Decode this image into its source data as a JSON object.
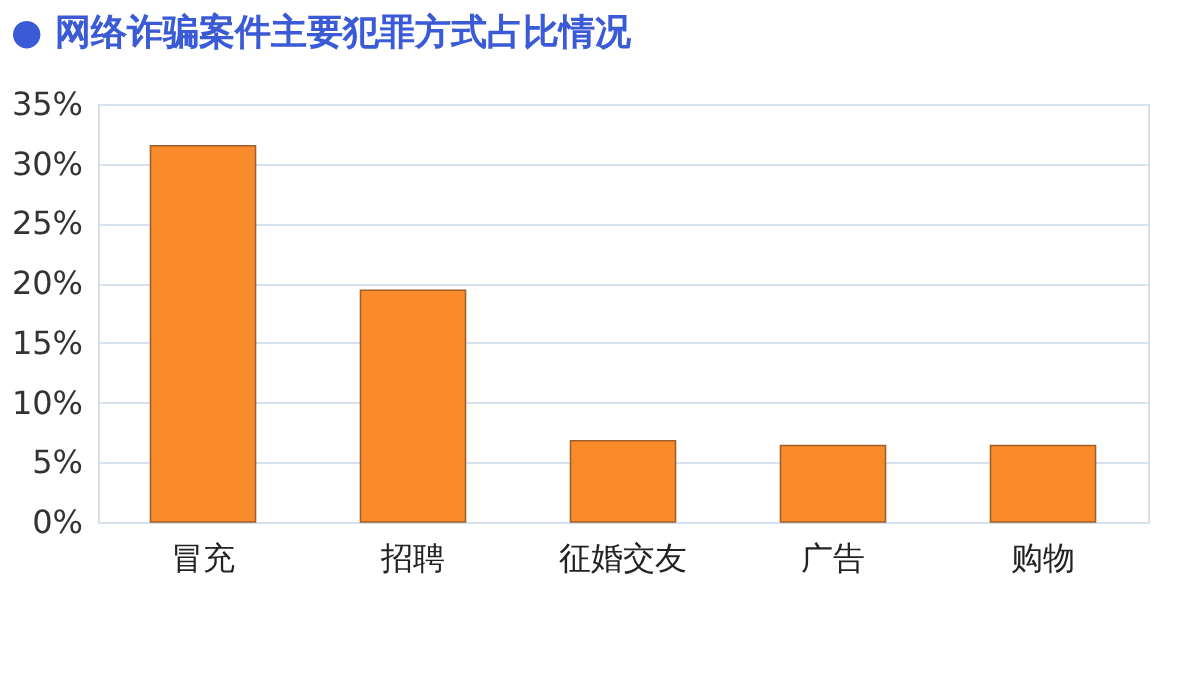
{
  "chart_data": {
    "type": "bar",
    "title": "● 网络诈骗案件主要犯罪方式占比情况",
    "categories": [
      "冒充",
      "招聘",
      "征婚交友",
      "广告",
      "购物"
    ],
    "values": [
      31.5,
      19.4,
      6.8,
      6.4,
      6.4
    ],
    "color": "#f98b2a",
    "ylim": [
      0,
      35
    ],
    "yticks": [
      {
        "value": 0,
        "label": "0%"
      },
      {
        "value": 5,
        "label": "5%"
      },
      {
        "value": 10,
        "label": "10%"
      },
      {
        "value": 15,
        "label": "15%"
      },
      {
        "value": 20,
        "label": "20%"
      },
      {
        "value": 25,
        "label": "25%"
      },
      {
        "value": 30,
        "label": "30%"
      },
      {
        "value": 35,
        "label": "35%"
      }
    ],
    "grid": "y"
  }
}
